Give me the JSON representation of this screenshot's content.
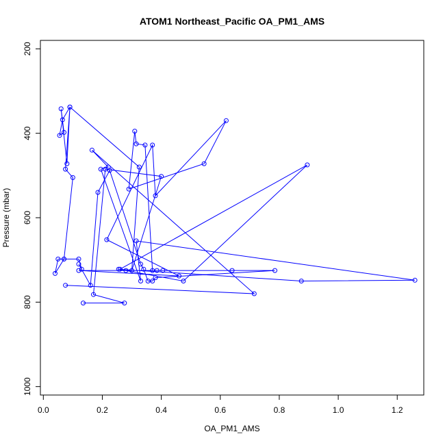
{
  "chart_data": {
    "type": "line",
    "title": "ATOM1 Northeast_Pacific OA_PM1_AMS",
    "xlabel": "OA_PM1_AMS",
    "ylabel": "Pressure (mbar)",
    "xlim": [
      -0.01,
      1.29
    ],
    "ylim": [
      1020,
      180
    ],
    "y_inverted": true,
    "grid": false,
    "x_ticks": [
      0.0,
      0.2,
      0.4,
      0.6,
      0.8,
      1.0,
      1.2
    ],
    "x_tick_labels": [
      "0.0",
      "0.2",
      "0.4",
      "0.6",
      "0.8",
      "1.0",
      "1.2"
    ],
    "y_ticks": [
      200,
      400,
      600,
      800,
      1000
    ],
    "y_tick_labels": [
      "200",
      "400",
      "600",
      "800",
      "1000"
    ],
    "series": [
      {
        "color": "#0000ff",
        "x": [
          0.135,
          0.275,
          0.17,
          0.21,
          0.4,
          0.3,
          0.325,
          0.09,
          0.08,
          0.06,
          0.07,
          0.055,
          0.065,
          0.09,
          0.075,
          0.1,
          0.07,
          0.05,
          0.04,
          0.07,
          0.12,
          0.13,
          0.12,
          0.16,
          0.185,
          0.225,
          0.33,
          0.34,
          0.355,
          0.37,
          0.38,
          0.785,
          0.64,
          0.12,
          0.46,
          0.215,
          0.37,
          0.38,
          0.62,
          0.545,
          0.29,
          0.31,
          0.315,
          0.345,
          0.37,
          0.405,
          0.385,
          0.28,
          0.26,
          0.895,
          0.475,
          0.255,
          0.875,
          1.26,
          0.315,
          0.33,
          0.195,
          0.22,
          0.165,
          0.715,
          0.075
        ],
        "y": [
          802,
          802,
          782,
          485,
          502,
          725,
          480,
          338,
          472,
          342,
          398,
          405,
          368,
          338,
          485,
          505,
          698,
          698,
          732,
          698,
          698,
          722,
          710,
          760,
          540,
          488,
          710,
          722,
          750,
          750,
          742,
          725,
          725,
          725,
          738,
          652,
          428,
          548,
          370,
          472,
          532,
          395,
          425,
          428,
          725,
          725,
          725,
          725,
          722,
          475,
          750,
          722,
          750,
          748,
          655,
          750,
          485,
          480,
          440,
          780,
          760
        ]
      }
    ]
  }
}
